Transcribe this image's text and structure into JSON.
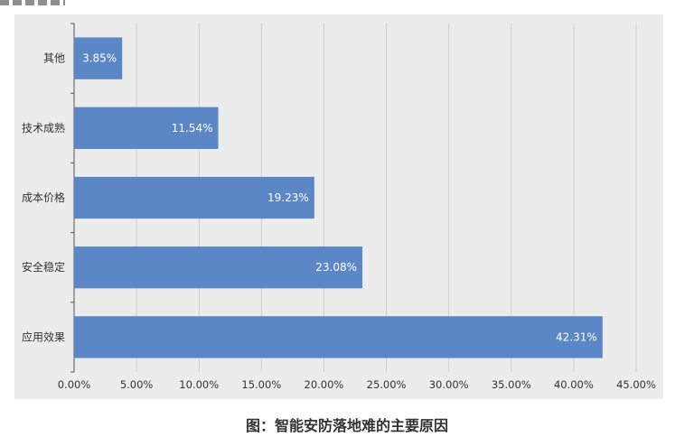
{
  "figure": {
    "caption": "图：智能安防落地难的主要原因"
  },
  "colors": {
    "bar": "#5b87c6",
    "panel": "#ececec",
    "grid": "#cfcfcf",
    "axis": "#555555",
    "text": "#333333",
    "data_label": "#ffffff"
  },
  "chart_data": {
    "type": "bar",
    "orientation": "horizontal",
    "title": "",
    "xlabel": "",
    "ylabel": "",
    "categories": [
      "其他",
      "技术成熟",
      "成本价格",
      "安全稳定",
      "应用效果"
    ],
    "values": [
      3.85,
      11.54,
      19.23,
      23.08,
      42.31
    ],
    "data_labels": [
      "3.85%",
      "11.54%",
      "19.23%",
      "23.08%",
      "42.31%"
    ],
    "xlim": [
      0,
      45
    ],
    "x_ticks": [
      0,
      5,
      10,
      15,
      20,
      25,
      30,
      35,
      40,
      45
    ],
    "x_tick_labels": [
      "0.00%",
      "5.00%",
      "10.00%",
      "15.00%",
      "20.00%",
      "25.00%",
      "30.00%",
      "35.00%",
      "40.00%",
      "45.00%"
    ],
    "grid": true,
    "legend": "none"
  }
}
